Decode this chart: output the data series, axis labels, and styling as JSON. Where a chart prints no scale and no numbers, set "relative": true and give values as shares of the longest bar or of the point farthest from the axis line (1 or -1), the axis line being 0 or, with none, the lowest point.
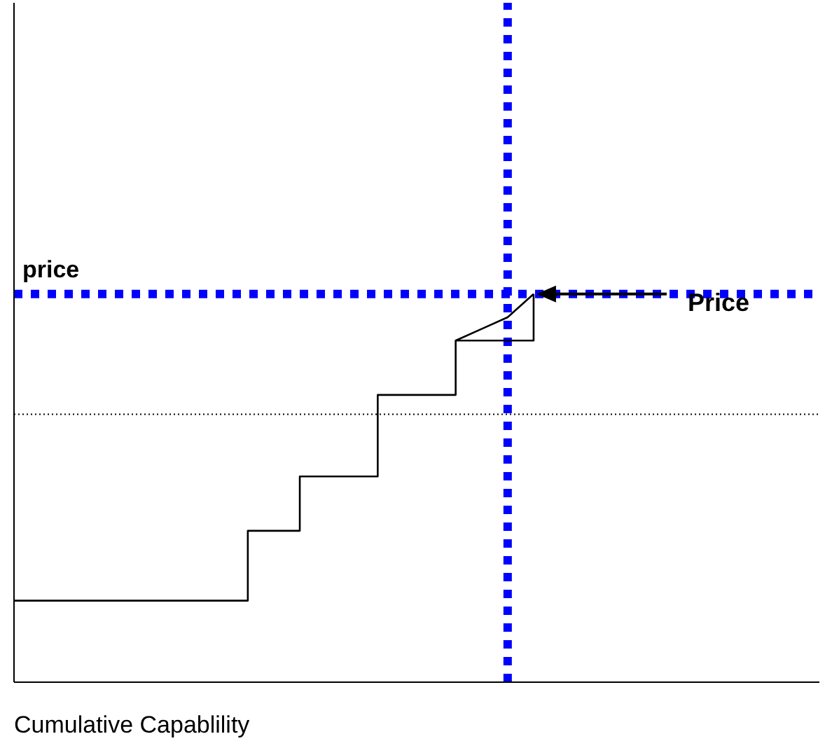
{
  "chart_data": {
    "type": "step",
    "relative": true,
    "xlabel": "Cumulative Capablility",
    "grid": false,
    "legend": false,
    "marker": "none",
    "categories": [
      null,
      null,
      null,
      null,
      null,
      null,
      null,
      null,
      null,
      null,
      null,
      null,
      null,
      null,
      null,
      null,
      null,
      null,
      null,
      null,
      null,
      null,
      null,
      null,
      null,
      null,
      null,
      null,
      null,
      null,
      null,
      null
    ],
    "series": [
      {
        "color": "#000000",
        "values": [
          0.21,
          0.21,
          0.21,
          0.21,
          0.21,
          0.21,
          0.21,
          0.21,
          0.21,
          0.39,
          0.39,
          0.53,
          0.53,
          0.53,
          0.74,
          0.74,
          0.74,
          0.88,
          0.88,
          0.88,
          1.0,
          null,
          null,
          null,
          null,
          null,
          null,
          null,
          null,
          null,
          null,
          null
        ]
      },
      {
        "type": "line",
        "color": "#000000",
        "values": [
          null,
          null,
          null,
          null,
          null,
          null,
          null,
          null,
          null,
          null,
          null,
          null,
          null,
          null,
          null,
          null,
          null,
          0.88,
          0.91,
          0.94,
          1.0,
          null,
          null,
          null,
          null,
          null,
          null,
          null,
          null,
          null,
          null,
          null
        ]
      }
    ],
    "ref_lines": [
      {
        "axis": "y",
        "value": 1.0,
        "label": "price",
        "color": "#0000ff",
        "line_style": "dotted"
      },
      {
        "axis": "y",
        "value": 0.69,
        "color": "#000000",
        "line_style": "dotted"
      }
    ],
    "annotations": [
      "Price"
    ]
  }
}
